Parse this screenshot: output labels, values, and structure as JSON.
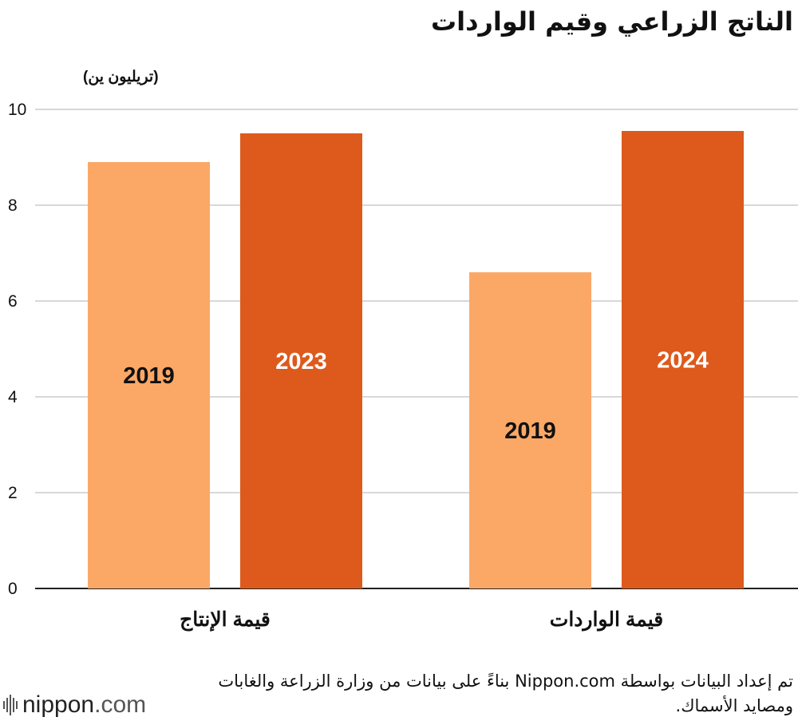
{
  "chart_data": {
    "type": "bar",
    "title": "الناتج الزراعي وقيم الواردات",
    "unit_label": "(تريليون ين)",
    "ylim": [
      0,
      10
    ],
    "yticks": [
      0,
      2,
      4,
      6,
      8,
      10
    ],
    "grid": true,
    "groups": [
      {
        "label": "قيمة الإنتاج",
        "bars": [
          {
            "year": "2019",
            "value": 8.9,
            "color": "#fba866",
            "text_color": "#111111"
          },
          {
            "year": "2023",
            "value": 9.5,
            "color": "#dd5a1c",
            "text_color": "#ffffff"
          }
        ]
      },
      {
        "label": "قيمة الواردات",
        "bars": [
          {
            "year": "2019",
            "value": 6.6,
            "color": "#fba866",
            "text_color": "#111111"
          },
          {
            "year": "2024",
            "value": 9.55,
            "color": "#dd5a1c",
            "text_color": "#ffffff"
          }
        ]
      }
    ]
  },
  "source": "تم إعداد البيانات بواسطة Nippon.com بناءً على بيانات من وزارة الزراعة والغابات ومصايد الأسماك.",
  "logo": {
    "name": "nippon",
    "suffix": "com"
  },
  "colors": {
    "light": "#fba866",
    "dark": "#dd5a1c",
    "grid": "#cccccc",
    "axis": "#222222"
  }
}
